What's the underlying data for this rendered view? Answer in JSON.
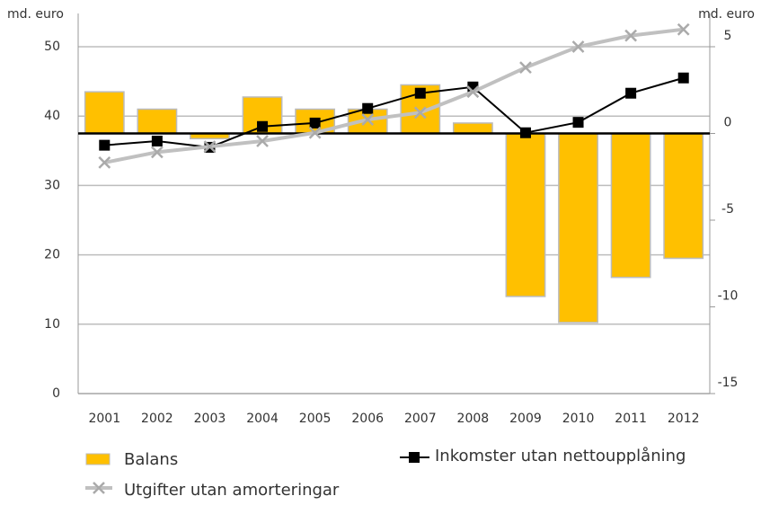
{
  "chart_data": {
    "type": "bar_line",
    "y_label": "md. euro",
    "y2_label": "md. euro",
    "categories": [
      "2001",
      "2002",
      "2003",
      "2004",
      "2005",
      "2006",
      "2007",
      "2008",
      "2009",
      "2010",
      "2011",
      "2012"
    ],
    "series": [
      {
        "name": "Balans",
        "type": "bar",
        "axis": "y2",
        "color": "#ffc000",
        "values": [
          2.4,
          1.4,
          -0.3,
          2.1,
          1.4,
          1.4,
          2.8,
          0.6,
          -9.4,
          -10.9,
          -8.3,
          -7.2
        ]
      },
      {
        "name": "Inkomster utan nettoupplåning",
        "type": "line",
        "color": "#000000",
        "values": [
          35.8,
          36.4,
          35.5,
          38.5,
          39.0,
          41.1,
          43.3,
          44.2,
          37.6,
          39.1,
          43.3,
          45.5
        ]
      },
      {
        "name": "Utgifter utan amorteringar",
        "type": "line",
        "color": "#c0c0c0",
        "values": [
          33.3,
          34.8,
          35.6,
          36.4,
          37.6,
          39.5,
          40.5,
          43.5,
          47.0,
          50.0,
          51.6,
          52.5
        ]
      }
    ],
    "ylim": [
      0,
      50
    ],
    "yticks": [
      0,
      10,
      20,
      30,
      40,
      50
    ],
    "y2lim": [
      -15,
      5
    ],
    "y2ticks": [
      -15,
      -10,
      -5,
      0,
      5
    ],
    "grid": true
  }
}
